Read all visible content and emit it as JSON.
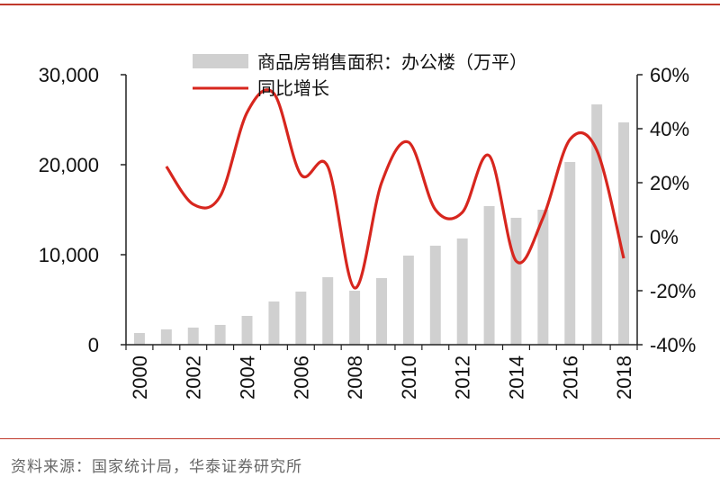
{
  "source_note": "资料来源：国家统计局，华泰证券研究所",
  "colors": {
    "bar": "#d0d0d0",
    "line": "#d7261e",
    "axis": "#222222",
    "rule": "#c0392b"
  },
  "chart_data": {
    "type": "bar",
    "title": "",
    "xlabel": "",
    "ylabel": "",
    "ylim": [
      0,
      30000
    ],
    "y2lim": [
      -0.4,
      0.6
    ],
    "categories": [
      "2000",
      "2001",
      "2002",
      "2003",
      "2004",
      "2005",
      "2006",
      "2007",
      "2008",
      "2009",
      "2010",
      "2011",
      "2012",
      "2013",
      "2014",
      "2015",
      "2016",
      "2017",
      "2018"
    ],
    "x_tick_labels": [
      "2000",
      "2002",
      "2004",
      "2006",
      "2008",
      "2010",
      "2012",
      "2014",
      "2016",
      "2018"
    ],
    "y_tick_labels": [
      "0",
      "10,000",
      "20,000",
      "30,000"
    ],
    "y2_tick_labels": [
      "-40%",
      "-20%",
      "0%",
      "20%",
      "40%",
      "60%"
    ],
    "legend_position": "top",
    "series": [
      {
        "name": "商品房销售面积：办公楼（万平）",
        "type": "bar",
        "axis": "left",
        "values": [
          1300,
          1700,
          1900,
          2200,
          3200,
          4800,
          5900,
          7500,
          6000,
          7400,
          9900,
          11000,
          11800,
          15400,
          14100,
          15000,
          20300,
          26700,
          24700
        ]
      },
      {
        "name": "同比增长",
        "type": "line",
        "axis": "right",
        "values": [
          null,
          0.26,
          0.12,
          0.15,
          0.46,
          0.53,
          0.23,
          0.26,
          -0.19,
          0.2,
          0.35,
          0.1,
          0.09,
          0.3,
          -0.09,
          0.07,
          0.36,
          0.32,
          -0.08
        ]
      }
    ]
  }
}
